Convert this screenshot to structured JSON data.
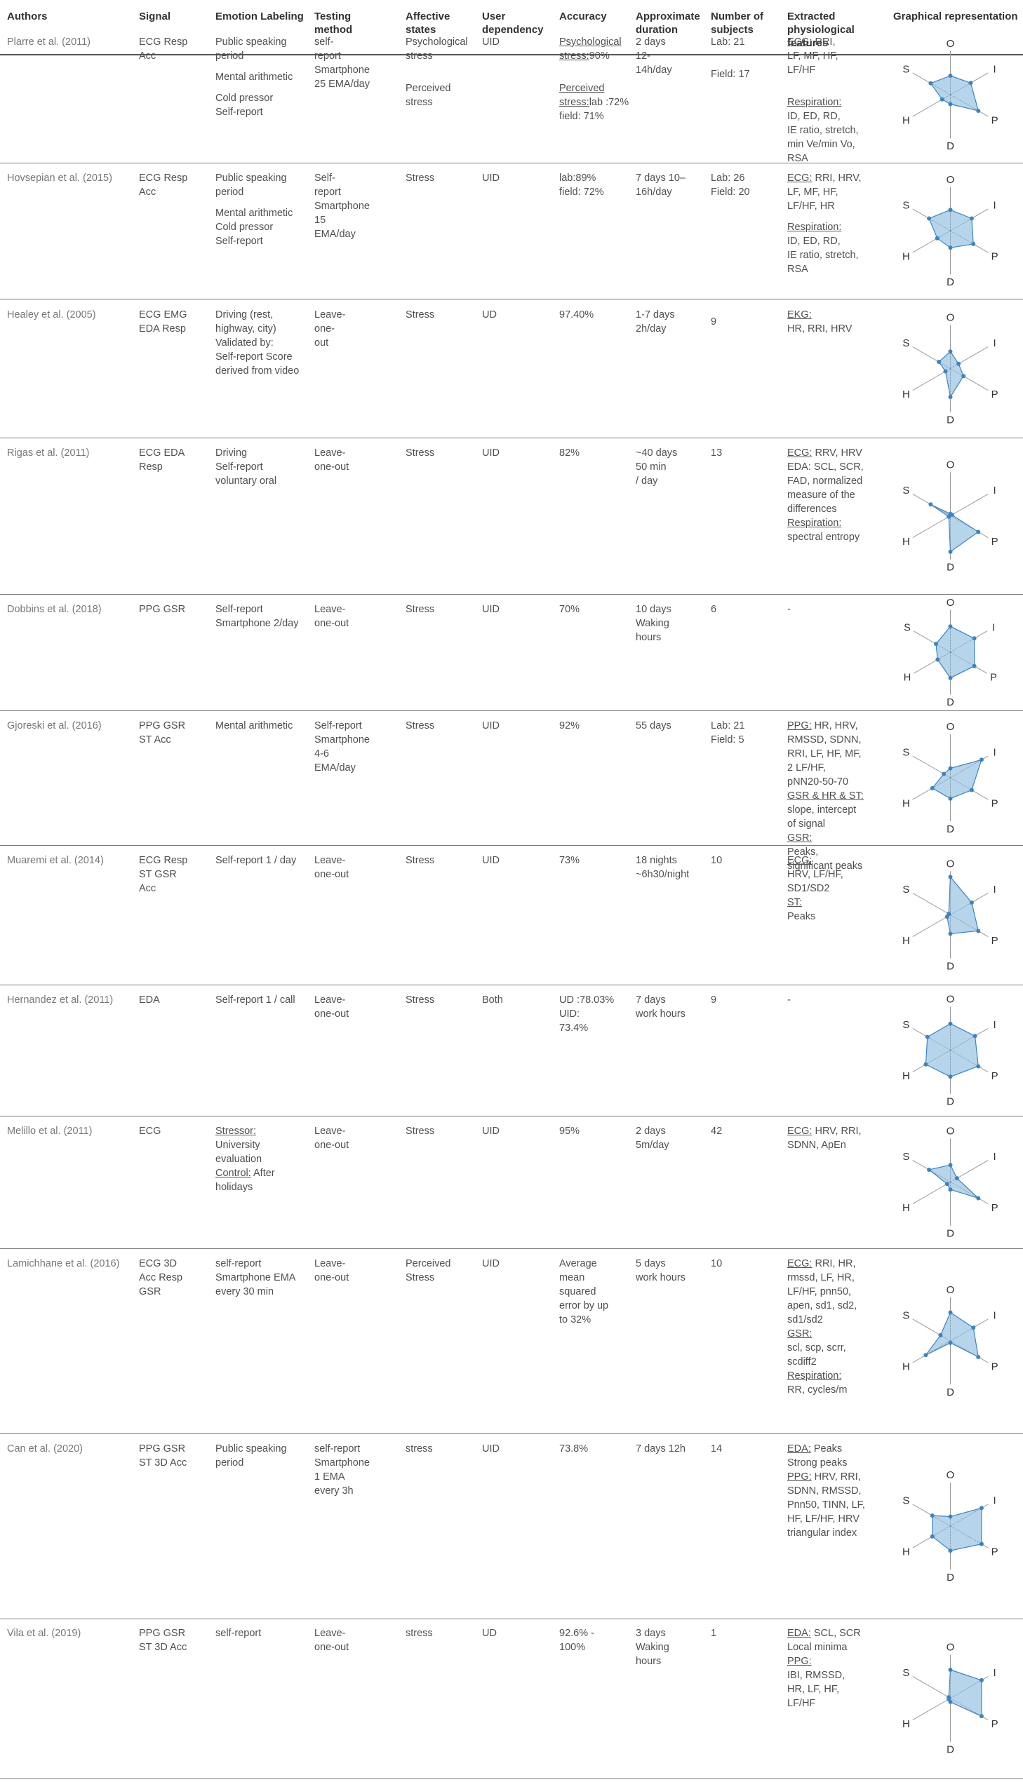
{
  "headers": [
    "Authors",
    "Signal",
    "Emotion Labeling",
    "Testing method",
    "Affective states",
    "User dependency",
    "Accuracy",
    "Approximate duration",
    "Number of subjects",
    "Extracted physiological features",
    "Graphical representation"
  ],
  "rows": [
    {
      "author": "Plarre et al. (2011)",
      "signal": "ECG Resp\nAcc",
      "labeling": [
        {
          "t": "Public speaking\nperiod"
        },
        {
          "t": "Mental arithmetic",
          "gap": 1
        },
        {
          "t": "Cold pressor\nSelf-report",
          "gap": 1
        }
      ],
      "testing": "self-\nreport\nSmartphone\n25 EMA/day",
      "affective": [
        {
          "t": "Psychological\nstress"
        },
        {
          "t": "Perceived\nstress",
          "gap": 2
        }
      ],
      "dependency": "UID",
      "accuracy": [
        {
          "u": "Psychological\nstress:",
          "t": "90%"
        },
        {
          "u": "Perceived stress:",
          "t": "lab :72%\nfield: 71%",
          "gap": 2
        }
      ],
      "duration": "2  days\n12-\n14h/day",
      "subjects": [
        {
          "t": "Lab: 21"
        },
        {
          "t": "Field: 17",
          "gap": 2
        }
      ],
      "features": [
        {
          "u": "ECG:",
          "t": " RRI,\nLF, MF, HF,\nLF/HF"
        },
        {
          "u": "Respiration:",
          "t": "\nID, ED, RD,\nIE ratio, stretch,\nmin Ve/min Vo,\nRSA",
          "gap": 2
        }
      ],
      "radar": {
        "O": 0.5,
        "I": 0.62,
        "P": 0.85,
        "D": 0.25,
        "H": 0.25,
        "S": 0.6
      }
    },
    {
      "author": "Hovsepian et al. (2015)",
      "signal": "ECG Resp\nAcc",
      "labeling": [
        {
          "t": "Public speaking\nperiod"
        },
        {
          "t": "Mental arithmetic\nCold pressor\nSelf-report",
          "gap": 1
        }
      ],
      "testing": "Self-\nreport\nSmartphone\n15\nEMA/day",
      "affective": [
        {
          "t": "Stress"
        }
      ],
      "dependency": "UID",
      "accuracy": [
        {
          "t": "lab:89%\nfield: 72%"
        }
      ],
      "duration": "7 days 10–\n16h/day",
      "subjects": [
        {
          "t": "Lab: 26\nField: 20"
        }
      ],
      "features": [
        {
          "u": "ECG:",
          "t": " RRI, HRV,\nLF, MF, HF,\nLF/HF, HR"
        },
        {
          "u": "Respiration:",
          "t": "\nID, ED, RD,\nIE ratio, stretch,\nRSA",
          "gap": 1
        }
      ],
      "radar": {
        "O": 0.55,
        "I": 0.65,
        "P": 0.7,
        "D": 0.45,
        "H": 0.4,
        "S": 0.65
      }
    },
    {
      "author": "Healey et al. (2005)",
      "signal": "ECG EMG\nEDA Resp",
      "labeling": [
        {
          "t": "Driving (rest,\nhighway, city)\nValidated by:\nSelf-report Score\nderived from video"
        }
      ],
      "testing": "Leave-\none-\nout",
      "affective": [
        {
          "t": "Stress"
        }
      ],
      "dependency": "UD",
      "accuracy": [
        {
          "t": "97.40%"
        }
      ],
      "duration": "1-7 days\n2h/day",
      "subjects": [
        {
          "t": "9",
          "gap": 1
        }
      ],
      "features": [
        {
          "u": "EKG:",
          "t": "\nHR, RRI, HRV"
        }
      ],
      "radar": {
        "O": 0.45,
        "I": 0.25,
        "P": 0.4,
        "D": 0.75,
        "H": 0.15,
        "S": 0.35
      }
    },
    {
      "author": "Rigas et al. (2011)",
      "signal": " ECG EDA\nResp",
      "labeling": [
        {
          "t": "Driving\nSelf-report\nvoluntary oral"
        }
      ],
      "testing": "Leave-\none-out",
      "affective": [
        {
          "t": "Stress"
        }
      ],
      "dependency": "UID",
      "accuracy": [
        {
          "t": "82%"
        }
      ],
      "duration": "~40 days\n50 min\n/ day",
      "subjects": [
        {
          "t": "13"
        }
      ],
      "features": [
        {
          "u": "ECG:",
          "t": " RRV, HRV\nEDA: SCL, SCR,\nFAD, normalized\nmeasure of the\ndifferences"
        },
        {
          "u": "Respiration:",
          "t": "\nspectral entropy"
        }
      ],
      "radar": {
        "O": 0.05,
        "I": 0.05,
        "P": 0.85,
        "D": 0.95,
        "H": 0.05,
        "S": 0.6
      }
    },
    {
      "author": "Dobbins et al. (2018)",
      "signal": "PPG GSR",
      "labeling": [
        {
          "t": "Self-report\nSmartphone 2/day"
        }
      ],
      "testing": "Leave-\none-out",
      "affective": [
        {
          "t": "Stress"
        }
      ],
      "dependency": "UID",
      "accuracy": [
        {
          "t": "70%"
        }
      ],
      "duration": "10 days\nWaking\nhours",
      "subjects": [
        {
          "t": "6"
        }
      ],
      "features": [
        {
          "t": "-"
        }
      ],
      "radar": {
        "O": 0.7,
        "I": 0.75,
        "P": 0.75,
        "D": 0.7,
        "H": 0.4,
        "S": 0.45
      }
    },
    {
      "author": "Gjoreski et al. (2016)",
      "signal": " PPG GSR\nST Acc",
      "labeling": [
        {
          "t": "Mental arithmetic"
        }
      ],
      "testing": "Self-report\nSmartphone\n4-6\nEMA/day",
      "affective": [
        {
          "t": "Stress"
        }
      ],
      "dependency": "UID",
      "accuracy": [
        {
          "t": "92%"
        }
      ],
      "duration": "55 days",
      "subjects": [
        {
          "t": "Lab: 21\nField: 5"
        }
      ],
      "features": [
        {
          "u": "PPG:",
          "t": " HR, HRV,\nRMSSD, SDNN,\nRRI, LF, HF, MF,\n2 LF/HF,\npNN20-50-70"
        },
        {
          "u": "GSR & HR & ST:",
          "t": "\nslope, intercept\nof signal "
        },
        {
          "u": "GSR:",
          "t": "\nPeaks,\nsignificant peaks"
        }
      ],
      "radar": {
        "O": 0.25,
        "I": 0.95,
        "P": 0.65,
        "D": 0.55,
        "H": 0.55,
        "S": 0.2
      }
    },
    {
      "author": "Muaremi et al. (2014)",
      "signal": " ECG Resp\nST GSR\nAcc",
      "labeling": [
        {
          "t": "Self-report 1 / day"
        }
      ],
      "testing": "Leave-\none-out",
      "affective": [
        {
          "t": "Stress"
        }
      ],
      "dependency": "UID",
      "accuracy": [
        {
          "t": "73%"
        }
      ],
      "duration": "18 nights\n~6h30/night",
      "subjects": [
        {
          "t": "10"
        }
      ],
      "features": [
        {
          "u": "ECG:",
          "t": "\nHRV, LF/HF,\nSD1/SD2 "
        },
        {
          "u": "ST:",
          "t": "\nPeaks"
        }
      ],
      "radar": {
        "O": 1.0,
        "I": 0.65,
        "P": 0.85,
        "D": 0.5,
        "H": 0.1,
        "S": 0.05
      }
    },
    {
      "author": "Hernandez et al. (2011)",
      "signal": "EDA",
      "labeling": [
        {
          "t": "Self-report 1 / call"
        }
      ],
      "testing": "Leave-\none-out",
      "affective": [
        {
          "t": "Stress"
        }
      ],
      "dependency": "Both",
      "accuracy": [
        {
          "t": "UD :78.03%\nUID:\n73.4%"
        }
      ],
      "duration": "7 days\nwork hours",
      "subjects": [
        {
          "t": "9"
        }
      ],
      "features": [
        {
          "t": "-"
        }
      ],
      "radar": {
        "O": 0.7,
        "I": 0.75,
        "P": 0.85,
        "D": 0.7,
        "H": 0.75,
        "S": 0.7
      }
    },
    {
      "author": "Melillo et al. (2011)",
      "signal": "ECG",
      "labeling": [
        {
          "u": "Stressor:",
          "t": "\nUniversity\nevaluation\n"
        },
        {
          "u": "Control:",
          "t": " After\nholidays"
        }
      ],
      "testing": "Leave-\none-out",
      "affective": [
        {
          "t": "Stress"
        }
      ],
      "dependency": "UID",
      "accuracy": [
        {
          "t": "95%"
        }
      ],
      "duration": "2 days\n5m/day",
      "subjects": [
        {
          "t": "42"
        }
      ],
      "features": [
        {
          "u": "ECG:",
          "t": " HRV, RRI,\nSDNN, ApEn"
        }
      ],
      "radar": {
        "O": 0.45,
        "I": 0.2,
        "P": 0.85,
        "D": 0.2,
        "H": 0.1,
        "S": 0.65
      }
    },
    {
      "author": "Lamichhane et al. (2016)",
      "signal": " ECG 3D\nAcc Resp\nGSR",
      "labeling": [
        {
          "t": "self-report\nSmartphone EMA\nevery 30 min"
        }
      ],
      "testing": "Leave-\none-out",
      "affective": [
        {
          "t": "Perceived\nStress"
        }
      ],
      "dependency": "UID",
      "accuracy": [
        {
          "t": "Average\nmean\nsquared\nerror by up\nto 32%"
        }
      ],
      "duration": "5 days\nwork hours",
      "subjects": [
        {
          "t": "10"
        }
      ],
      "features": [
        {
          "u": "ECG:",
          "t": " RRI, HR,\nrmssd, LF, HR,\nLF/HF, pnn50,\napen, sd1, sd2,\nsd1/sd2 "
        },
        {
          "u": "GSR:",
          "t": "\nscl, scp, scrr,\nscdiff2\n"
        },
        {
          "u": "Respiration:",
          "t": "\nRR, cycles/m"
        }
      ],
      "radar": {
        "O": 0.75,
        "I": 0.7,
        "P": 0.85,
        "D": 0.05,
        "H": 0.75,
        "S": 0.3
      }
    },
    {
      "author": "Can et al. (2020)",
      "signal": " PPG GSR\nST 3D Acc",
      "labeling": [
        {
          "t": "Public speaking\nperiod"
        }
      ],
      "testing": "self-report\nSmartphone\n1 EMA\nevery 3h",
      "affective": [
        {
          "t": "stress"
        }
      ],
      "dependency": "UID",
      "accuracy": [
        {
          "t": "73.8%"
        }
      ],
      "duration": "7 days 12h",
      "subjects": [
        {
          "t": "14"
        }
      ],
      "features": [
        {
          "u": "EDA:",
          "t": " Peaks\nStrong peaks\n"
        },
        {
          "u": "PPG:",
          "t": " HRV, RRI,\nSDNN, RMSSD,\nPnn50, TINN, LF,\nHF, LF/HF, HRV\ntriangular index"
        }
      ],
      "radar": {
        "O": 0.25,
        "I": 0.95,
        "P": 0.95,
        "D": 0.65,
        "H": 0.55,
        "S": 0.55
      }
    },
    {
      "author": "Vila et al. (2019)",
      "signal": " PPG GSR\nST 3D Acc",
      "labeling": [
        {
          "t": "self-report"
        }
      ],
      "testing": "Leave-\none-out",
      "affective": [
        {
          "t": "stress"
        }
      ],
      "dependency": "UD",
      "accuracy": [
        {
          "t": "92.6% -\n100%"
        }
      ],
      "duration": "3 days\nWaking\nhours",
      "subjects": [
        {
          "t": "1"
        }
      ],
      "features": [
        {
          "u": "EDA:",
          "t": " SCL, SCR\nLocal minima\n"
        },
        {
          "u": "PPG:",
          "t": "\nIBI, RMSSD,\nHR, LF, HF,\nLF/HF"
        }
      ],
      "radar": {
        "O": 0.75,
        "I": 0.95,
        "P": 0.95,
        "D": 0.1,
        "H": 0.05,
        "S": 0.05
      }
    }
  ],
  "radar_axes": [
    "O",
    "I",
    "P",
    "D",
    "H",
    "S"
  ],
  "colors": {
    "fill": "#a9cde6",
    "stroke": "#3d84c0",
    "dot": "#3d84c0",
    "axis": "#9a9a9a",
    "rule": "#7a7a7a",
    "label": "#333333"
  }
}
